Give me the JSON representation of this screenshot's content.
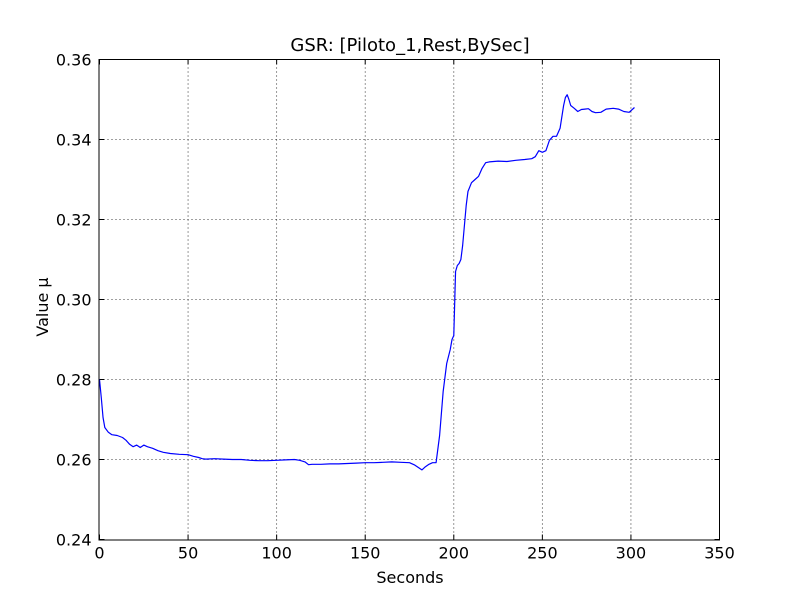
{
  "chart_data": {
    "type": "line",
    "title": "GSR: [Piloto_1,Rest,BySec]",
    "xlabel": "Seconds",
    "ylabel": "Value µ",
    "xlim": [
      0,
      350
    ],
    "ylim": [
      0.24,
      0.36
    ],
    "x_ticks": [
      "0",
      "50",
      "100",
      "150",
      "200",
      "250",
      "300",
      "350"
    ],
    "y_ticks": [
      "0.24",
      "0.26",
      "0.28",
      "0.30",
      "0.32",
      "0.34",
      "0.36"
    ],
    "grid": true,
    "grid_style": "dotted",
    "line_color": "#0000ff",
    "series": [
      {
        "x": [
          0,
          1,
          2,
          3,
          5,
          7,
          10,
          13,
          15,
          17,
          19,
          21,
          23,
          25,
          27,
          30,
          33,
          36,
          40,
          45,
          50,
          53,
          56,
          58,
          60,
          65,
          70,
          75,
          80,
          85,
          90,
          95,
          100,
          105,
          110,
          113,
          116,
          118,
          120,
          125,
          130,
          135,
          140,
          145,
          150,
          155,
          160,
          165,
          170,
          175,
          178,
          180,
          182,
          184,
          186,
          188,
          190,
          192,
          194,
          196,
          198,
          199,
          200,
          201,
          202,
          203,
          204,
          205,
          206,
          207,
          208,
          210,
          212,
          214,
          216,
          218,
          220,
          225,
          230,
          235,
          240,
          244,
          246,
          248,
          250,
          252,
          254,
          256,
          258,
          260,
          262,
          263,
          264,
          265,
          266,
          268,
          270,
          272,
          274,
          276,
          278,
          280,
          283,
          286,
          290,
          293,
          296,
          299,
          302
        ],
        "y": [
          0.28,
          0.2755,
          0.2705,
          0.268,
          0.2668,
          0.2662,
          0.266,
          0.2655,
          0.2648,
          0.2638,
          0.2632,
          0.2636,
          0.263,
          0.2636,
          0.2632,
          0.2628,
          0.2622,
          0.2618,
          0.2615,
          0.2613,
          0.2612,
          0.2608,
          0.2605,
          0.2602,
          0.2601,
          0.2602,
          0.2601,
          0.26,
          0.26,
          0.2598,
          0.2597,
          0.2597,
          0.2598,
          0.2599,
          0.26,
          0.2598,
          0.2594,
          0.2587,
          0.2588,
          0.2588,
          0.2589,
          0.2589,
          0.259,
          0.2591,
          0.2592,
          0.2592,
          0.2593,
          0.2594,
          0.2593,
          0.2592,
          0.2586,
          0.258,
          0.2574,
          0.2582,
          0.2588,
          0.2592,
          0.2592,
          0.266,
          0.277,
          0.284,
          0.2875,
          0.29,
          0.291,
          0.307,
          0.3085,
          0.309,
          0.31,
          0.3135,
          0.3185,
          0.3235,
          0.327,
          0.3292,
          0.33,
          0.3308,
          0.3328,
          0.3342,
          0.3344,
          0.3346,
          0.3345,
          0.3348,
          0.335,
          0.3352,
          0.3357,
          0.3372,
          0.3368,
          0.3372,
          0.3398,
          0.3408,
          0.3408,
          0.3428,
          0.3485,
          0.3505,
          0.3512,
          0.35,
          0.3485,
          0.3478,
          0.347,
          0.3475,
          0.3476,
          0.3477,
          0.347,
          0.3467,
          0.3468,
          0.3476,
          0.3478,
          0.3476,
          0.347,
          0.3468,
          0.348
        ]
      }
    ]
  }
}
